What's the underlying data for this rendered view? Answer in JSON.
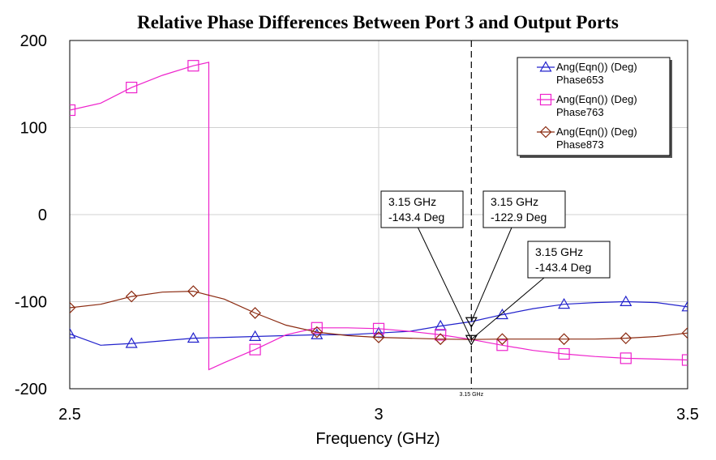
{
  "chart_data": {
    "type": "line",
    "title": "Relative Phase Differences Between Port 3 and Output Ports",
    "xlabel": "Frequency (GHz)",
    "ylabel": "",
    "xlim": [
      2.5,
      3.5
    ],
    "ylim": [
      -200,
      200
    ],
    "x_ticks": [
      2.5,
      3,
      3.5
    ],
    "x_tick_labels": [
      "2.5",
      "3",
      "3.5"
    ],
    "y_ticks": [
      -200,
      -100,
      0,
      100,
      200
    ],
    "y_tick_labels": [
      "-200",
      "-100",
      "0",
      "100",
      "200"
    ],
    "grid": true,
    "legend_position": "top-right",
    "series": [
      {
        "legend_line1": "Ang(Eqn()) (Deg)",
        "legend_line2": "Phase653",
        "color": "#2222cc",
        "marker": "triangle",
        "x": [
          2.5,
          2.55,
          2.6,
          2.65,
          2.7,
          2.75,
          2.8,
          2.85,
          2.9,
          2.95,
          3.0,
          3.05,
          3.1,
          3.15,
          3.2,
          3.25,
          3.3,
          3.35,
          3.4,
          3.45,
          3.5
        ],
        "y": [
          -137,
          -150,
          -148,
          -145,
          -142,
          -141,
          -140,
          -139,
          -138,
          -138,
          -136,
          -134,
          -128,
          -122.9,
          -115,
          -108,
          -103,
          -101,
          -100,
          -101,
          -106
        ],
        "marker_x": [
          2.5,
          2.6,
          2.7,
          2.8,
          2.9,
          3.0,
          3.1,
          3.2,
          3.3,
          3.4,
          3.5
        ],
        "marker_y": [
          -137,
          -148,
          -142,
          -140,
          -138,
          -136,
          -128,
          -115,
          -103,
          -100,
          -106
        ]
      },
      {
        "legend_line1": "Ang(Eqn()) (Deg)",
        "legend_line2": "Phase763",
        "color": "#ee22cc",
        "marker": "square",
        "x": [
          2.5,
          2.55,
          2.6,
          2.65,
          2.7,
          2.725,
          2.7251,
          2.75,
          2.8,
          2.85,
          2.9,
          2.95,
          3.0,
          3.05,
          3.1,
          3.15,
          3.2,
          3.25,
          3.3,
          3.35,
          3.4,
          3.45,
          3.5
        ],
        "y": [
          120,
          128,
          146,
          160,
          171,
          175,
          -178,
          -170,
          -155,
          -138,
          -130,
          -130,
          -131,
          -134,
          -138,
          -143.4,
          -150,
          -156,
          -160,
          -163,
          -165,
          -166,
          -167
        ],
        "marker_x": [
          2.5,
          2.6,
          2.7,
          2.8,
          2.9,
          3.0,
          3.1,
          3.2,
          3.3,
          3.4,
          3.5
        ],
        "marker_y": [
          120,
          146,
          171,
          -155,
          -130,
          -131,
          -138,
          -150,
          -160,
          -165,
          -167
        ]
      },
      {
        "legend_line1": "Ang(Eqn()) (Deg)",
        "legend_line2": "Phase873",
        "color": "#8b2a10",
        "marker": "diamond",
        "x": [
          2.5,
          2.55,
          2.6,
          2.65,
          2.7,
          2.75,
          2.8,
          2.85,
          2.9,
          2.95,
          3.0,
          3.05,
          3.1,
          3.15,
          3.2,
          3.25,
          3.3,
          3.35,
          3.4,
          3.45,
          3.5
        ],
        "y": [
          -107,
          -103,
          -94,
          -89,
          -88,
          -97,
          -113,
          -127,
          -135,
          -139,
          -141,
          -142,
          -143,
          -143.4,
          -143,
          -143,
          -143,
          -143,
          -142,
          -140,
          -136
        ],
        "marker_x": [
          2.5,
          2.6,
          2.7,
          2.8,
          2.9,
          3.0,
          3.1,
          3.2,
          3.3,
          3.4,
          3.5
        ],
        "marker_y": [
          -107,
          -94,
          -88,
          -113,
          -135,
          -141,
          -143,
          -143,
          -143,
          -142,
          -136
        ]
      }
    ],
    "marker_line": {
      "x": 3.15,
      "label": "3.15 GHz"
    },
    "annotations": [
      {
        "line1": "3.15 GHz",
        "line2": "-143.4 Deg",
        "series": 2,
        "y": -143.4
      },
      {
        "line1": "3.15 GHz",
        "line2": "-122.9 Deg",
        "series": 0,
        "y": -122.9
      },
      {
        "line1": "3.15 GHz",
        "line2": "-143.4 Deg",
        "series": 1,
        "y": -143.4
      }
    ]
  }
}
